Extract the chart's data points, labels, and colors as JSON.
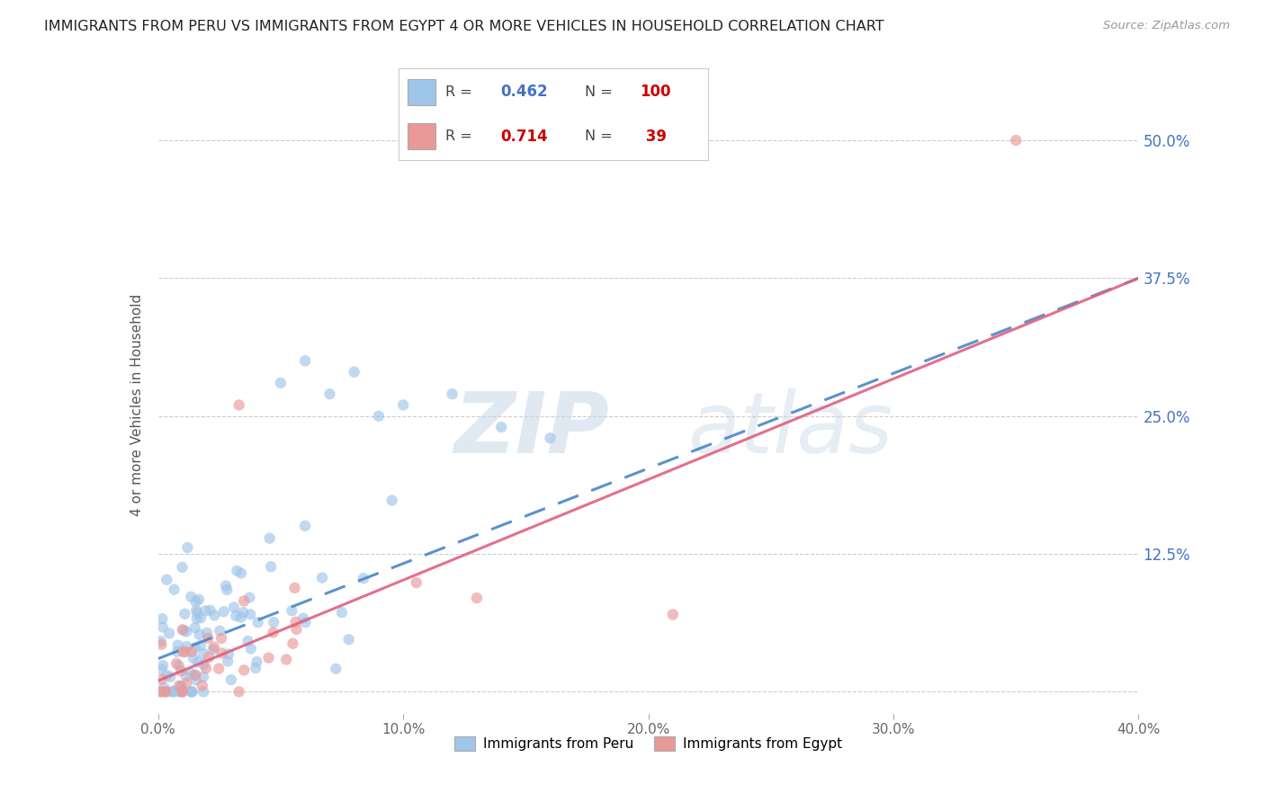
{
  "title": "IMMIGRANTS FROM PERU VS IMMIGRANTS FROM EGYPT 4 OR MORE VEHICLES IN HOUSEHOLD CORRELATION CHART",
  "source": "Source: ZipAtlas.com",
  "ylabel": "4 or more Vehicles in Household",
  "xlim": [
    0.0,
    0.4
  ],
  "ylim": [
    -0.02,
    0.54
  ],
  "peru_R": 0.462,
  "peru_N": 100,
  "egypt_R": 0.714,
  "egypt_N": 39,
  "peru_color": "#9fc5e8",
  "egypt_color": "#ea9999",
  "peru_line_color": "#4a86c8",
  "egypt_line_color": "#e06080",
  "grid_color": "#cccccc",
  "background_color": "#ffffff",
  "watermark_zip": "ZIP",
  "watermark_atlas": "atlas",
  "legend_peru": "Immigrants from Peru",
  "legend_egypt": "Immigrants from Egypt",
  "ytick_positions": [
    0.0,
    0.125,
    0.25,
    0.375,
    0.5
  ],
  "ytick_labels": [
    "",
    "12.5%",
    "25.0%",
    "37.5%",
    "50.0%"
  ],
  "xtick_positions": [
    0.0,
    0.1,
    0.2,
    0.3,
    0.4
  ],
  "xtick_labels": [
    "0.0%",
    "10.0%",
    "20.0%",
    "30.0%",
    "40.0%"
  ],
  "peru_line_x0": 0.0,
  "peru_line_y0": 0.03,
  "peru_line_x1": 0.4,
  "peru_line_y1": 0.375,
  "egypt_line_x0": 0.0,
  "egypt_line_y0": 0.01,
  "egypt_line_x1": 0.4,
  "egypt_line_y1": 0.375
}
